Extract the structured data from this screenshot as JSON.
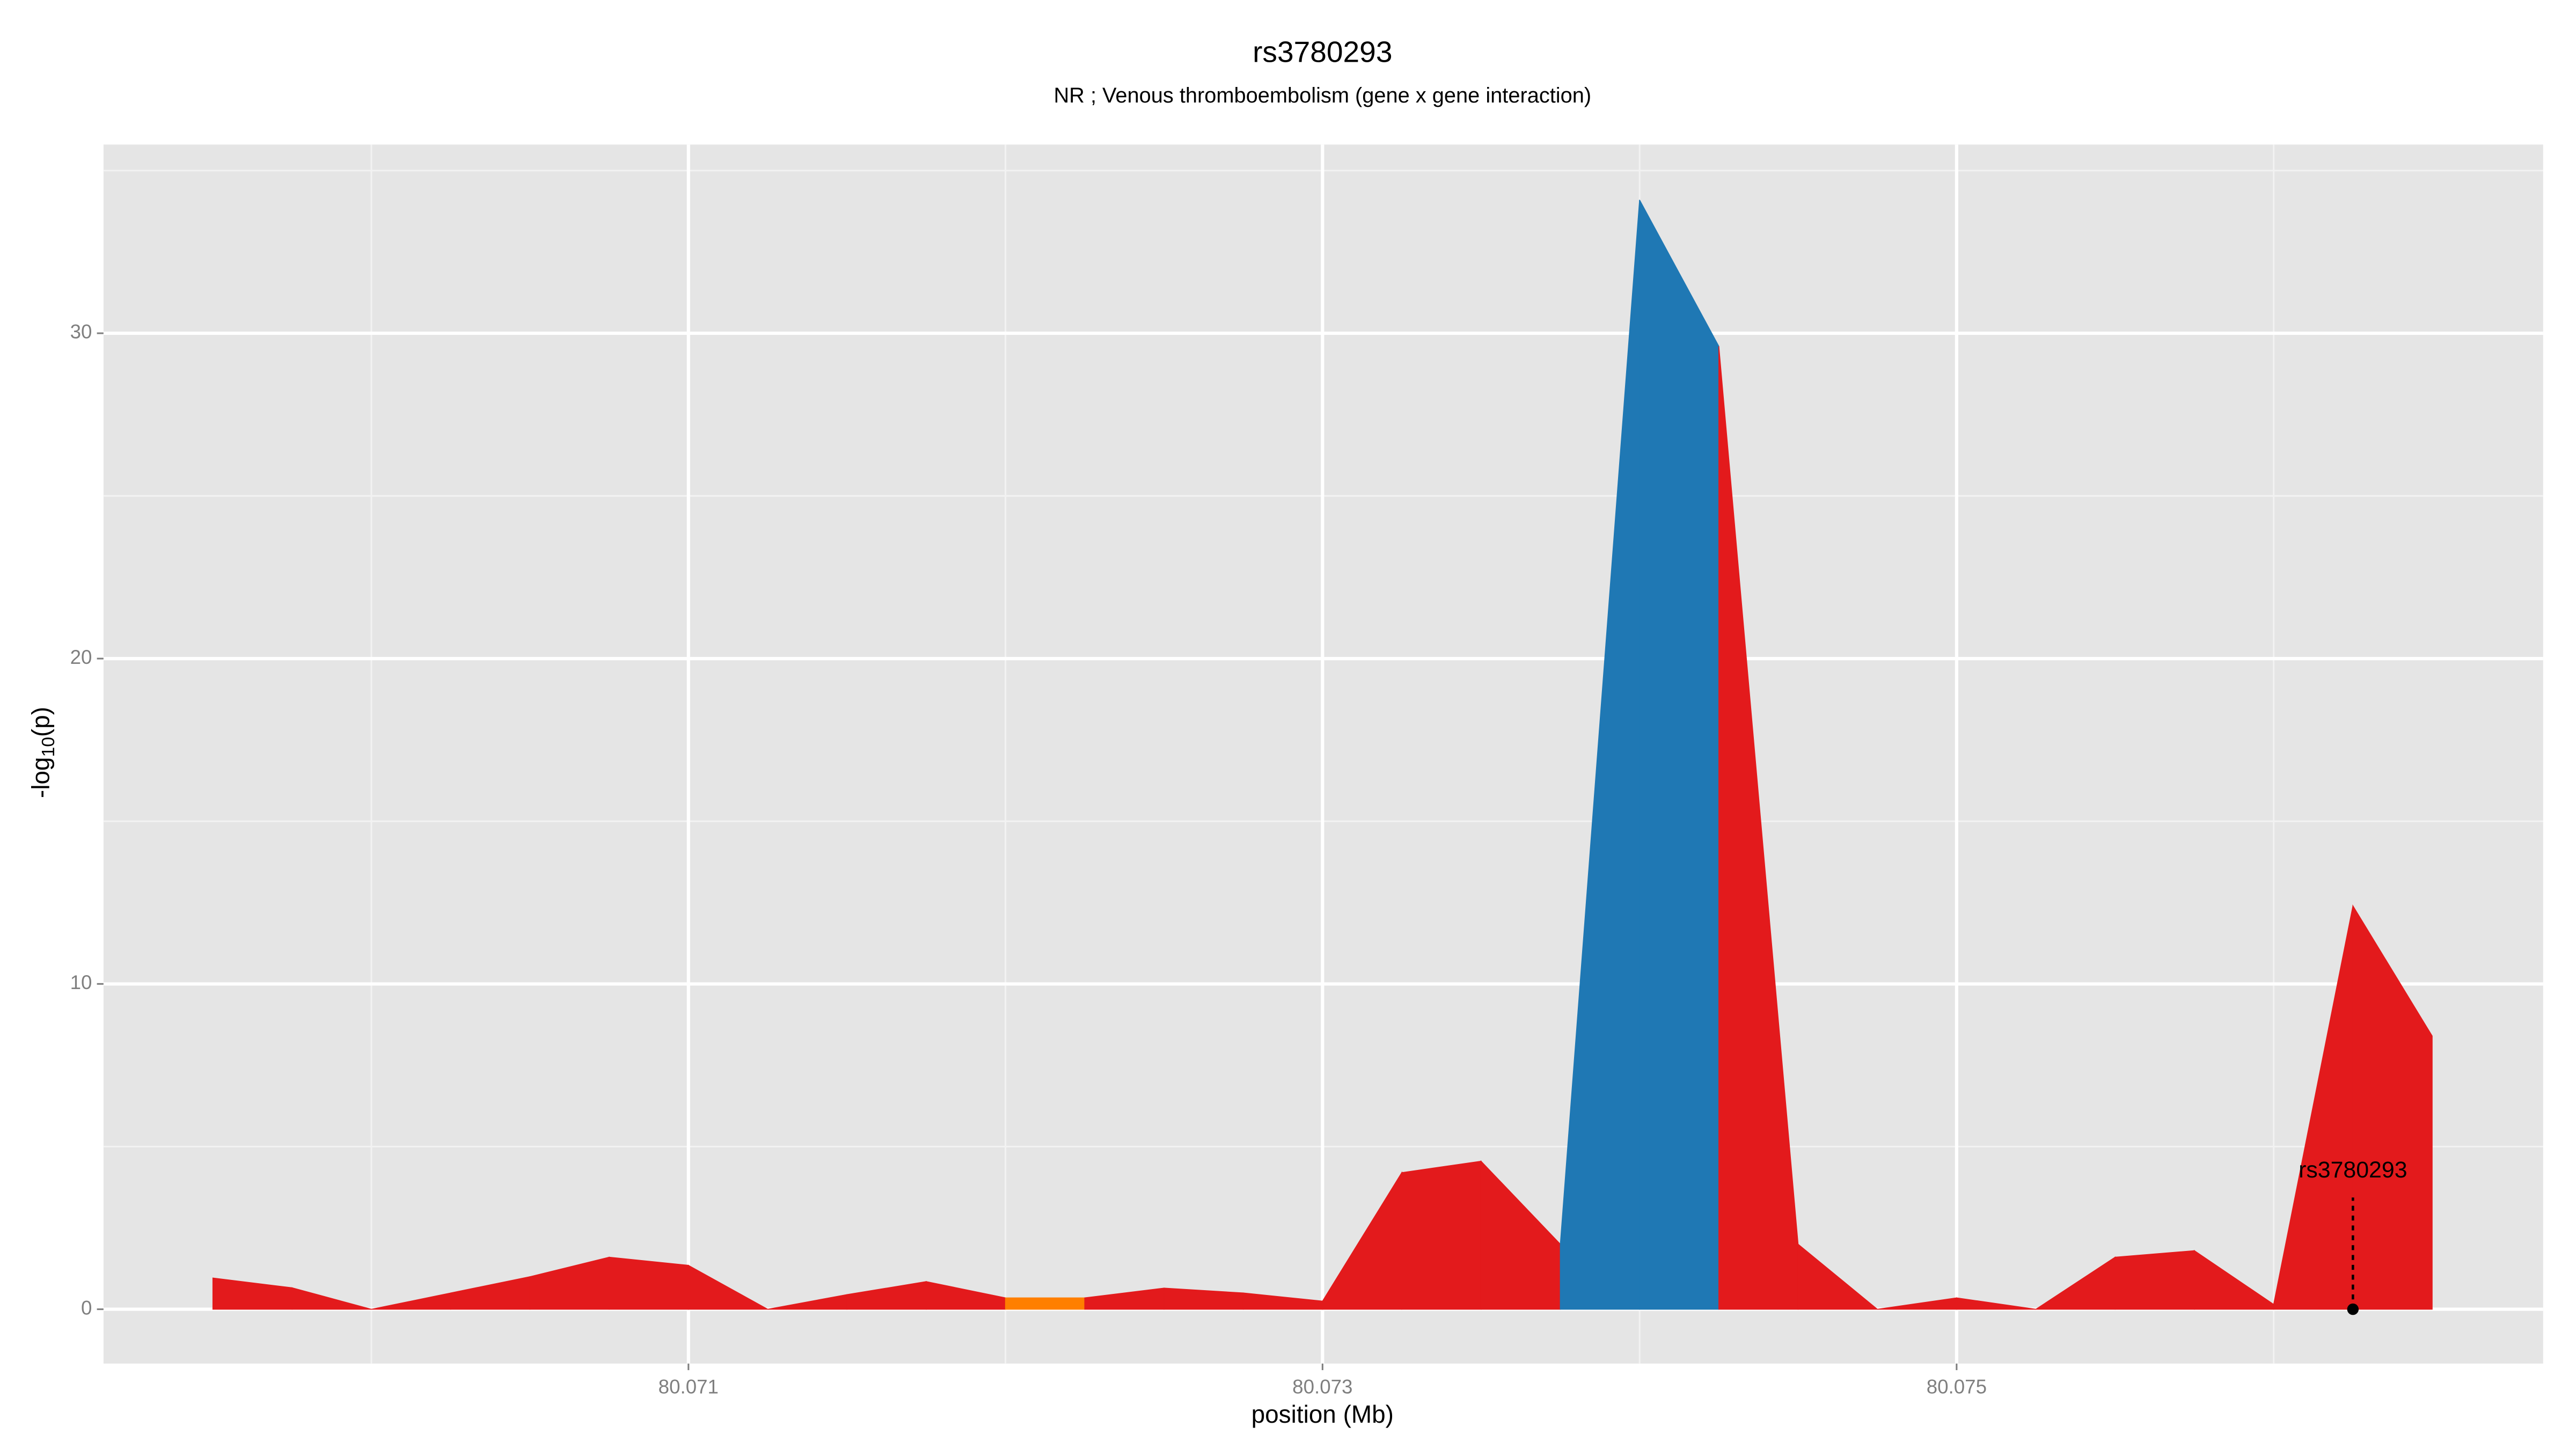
{
  "chart_data": {
    "type": "area",
    "title": "rs3780293",
    "subtitle": "NR ; Venous thromboembolism (gene x gene interaction)",
    "x_label": "position (Mb)",
    "y_label": [
      "-log",
      "10",
      "(p)"
    ],
    "x": [
      80.0695,
      80.06975,
      80.07,
      80.07025,
      80.0705,
      80.07075,
      80.071,
      80.07125,
      80.0715,
      80.07175,
      80.072,
      80.07225,
      80.0725,
      80.07275,
      80.073,
      80.07325,
      80.0735,
      80.07375,
      80.074,
      80.07425,
      80.0745,
      80.07475,
      80.075,
      80.07525,
      80.0755,
      80.07575,
      80.076,
      80.07625,
      80.0765
    ],
    "values": [
      0.96,
      0.66,
      0,
      0.5,
      1.0,
      1.6,
      1.35,
      0,
      0.45,
      0.85,
      0.35,
      0.35,
      0.65,
      0.5,
      0.25,
      4.2,
      4.55,
      2.0,
      34.1,
      29.6,
      2.0,
      0,
      0.35,
      0,
      1.6,
      1.8,
      0.15,
      12.4,
      8.4
    ],
    "colors": [
      "#e31a1c",
      "#e31a1c",
      "#e31a1c",
      "#e31a1c",
      "#e31a1c",
      "#e31a1c",
      "#e31a1c",
      "#e31a1c",
      "#e31a1c",
      "#e31a1c",
      "#ff7f00",
      "#e31a1c",
      "#e31a1c",
      "#e31a1c",
      "#e31a1c",
      "#e31a1c",
      "#e31a1c",
      "#1f78b4",
      "#1f78b4",
      "#e31a1c",
      "#e31a1c",
      "#e31a1c",
      "#e31a1c",
      "#e31a1c",
      "#e31a1c",
      "#e31a1c",
      "#e31a1c",
      "#e31a1c",
      "#e31a1c"
    ],
    "xlim": [
      80.069155,
      80.07685
    ],
    "ylim": [
      -1.67,
      35.8
    ],
    "xticks": [
      80.071,
      80.073,
      80.075
    ],
    "yticks": [
      0,
      10,
      20,
      30
    ],
    "minor_xticks": [
      80.07,
      80.072,
      80.074,
      80.076
    ],
    "minor_yticks": [
      5,
      15,
      25,
      35
    ],
    "grid": true,
    "annotation": {
      "text": "rs3780293",
      "x": 80.07625,
      "y": 0
    }
  }
}
